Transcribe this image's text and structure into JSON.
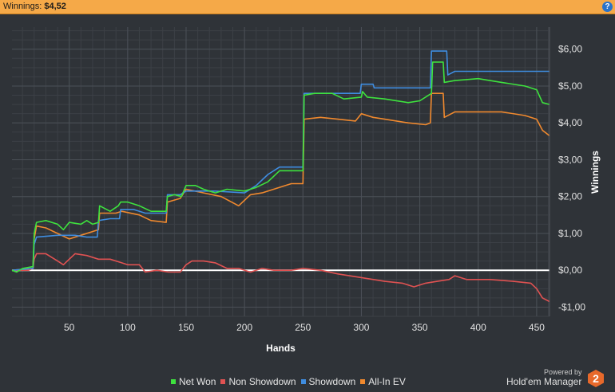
{
  "header": {
    "label": "Winnings:",
    "value": "$4,52",
    "help_icon": "question-icon",
    "help_label": "?"
  },
  "powered": {
    "text": "Powered by",
    "brand": "Hold'em Manager",
    "logo_label": "2"
  },
  "chart_data": {
    "type": "line",
    "xlabel": "Hands",
    "ylabel": "Winnings",
    "xlim": [
      1,
      461
    ],
    "ylim": [
      -1.25,
      6.6
    ],
    "x_ticks": [
      50,
      100,
      150,
      200,
      250,
      300,
      350,
      400,
      450
    ],
    "y_ticks": [
      -1,
      0,
      1,
      2,
      3,
      4,
      5,
      6
    ],
    "y_tick_labels": [
      "-$1,00",
      "$0,00",
      "$1,00",
      "$2,00",
      "$3,00",
      "$4,00",
      "$5,00",
      "$6,00"
    ],
    "grid": true,
    "legend_position": "bottom",
    "zero_line": {
      "y": 0,
      "color": "#ffffff"
    },
    "series": [
      {
        "name": "Net Won",
        "color": "#3ee23e",
        "points": [
          [
            1,
            0
          ],
          [
            5,
            -0.05
          ],
          [
            10,
            0.05
          ],
          [
            19,
            0.1
          ],
          [
            20,
            1.0
          ],
          [
            22,
            1.3
          ],
          [
            30,
            1.35
          ],
          [
            40,
            1.25
          ],
          [
            45,
            1.1
          ],
          [
            50,
            1.3
          ],
          [
            60,
            1.25
          ],
          [
            65,
            1.35
          ],
          [
            70,
            1.25
          ],
          [
            75,
            1.3
          ],
          [
            76,
            1.75
          ],
          [
            85,
            1.6
          ],
          [
            92,
            1.75
          ],
          [
            94,
            1.85
          ],
          [
            100,
            1.85
          ],
          [
            110,
            1.75
          ],
          [
            120,
            1.6
          ],
          [
            133,
            1.6
          ],
          [
            134,
            2.0
          ],
          [
            140,
            2.05
          ],
          [
            146,
            2.0
          ],
          [
            150,
            2.3
          ],
          [
            158,
            2.3
          ],
          [
            165,
            2.2
          ],
          [
            175,
            2.1
          ],
          [
            185,
            2.2
          ],
          [
            200,
            2.15
          ],
          [
            210,
            2.25
          ],
          [
            220,
            2.4
          ],
          [
            230,
            2.7
          ],
          [
            250,
            2.7
          ],
          [
            251,
            4.75
          ],
          [
            260,
            4.8
          ],
          [
            275,
            4.8
          ],
          [
            285,
            4.65
          ],
          [
            300,
            4.7
          ],
          [
            301,
            4.85
          ],
          [
            305,
            4.7
          ],
          [
            320,
            4.65
          ],
          [
            340,
            4.55
          ],
          [
            350,
            4.6
          ],
          [
            360,
            4.8
          ],
          [
            361,
            5.65
          ],
          [
            370,
            5.65
          ],
          [
            371,
            5.1
          ],
          [
            380,
            5.15
          ],
          [
            400,
            5.2
          ],
          [
            420,
            5.1
          ],
          [
            440,
            5.0
          ],
          [
            450,
            4.9
          ],
          [
            455,
            4.55
          ],
          [
            461,
            4.5
          ]
        ]
      },
      {
        "name": "Non Showdown",
        "color": "#e05252",
        "points": [
          [
            1,
            0
          ],
          [
            15,
            0
          ],
          [
            19,
            0.05
          ],
          [
            20,
            0.3
          ],
          [
            22,
            0.45
          ],
          [
            30,
            0.45
          ],
          [
            40,
            0.25
          ],
          [
            45,
            0.15
          ],
          [
            50,
            0.3
          ],
          [
            55,
            0.45
          ],
          [
            65,
            0.4
          ],
          [
            75,
            0.3
          ],
          [
            85,
            0.3
          ],
          [
            95,
            0.2
          ],
          [
            100,
            0.15
          ],
          [
            110,
            0.15
          ],
          [
            115,
            -0.05
          ],
          [
            125,
            0.0
          ],
          [
            135,
            -0.05
          ],
          [
            145,
            -0.05
          ],
          [
            150,
            0.15
          ],
          [
            155,
            0.25
          ],
          [
            165,
            0.25
          ],
          [
            175,
            0.2
          ],
          [
            185,
            0.05
          ],
          [
            195,
            0.05
          ],
          [
            205,
            -0.05
          ],
          [
            215,
            0.05
          ],
          [
            225,
            0.0
          ],
          [
            240,
            0.0
          ],
          [
            250,
            0.05
          ],
          [
            265,
            0.0
          ],
          [
            280,
            -0.1
          ],
          [
            300,
            -0.2
          ],
          [
            320,
            -0.3
          ],
          [
            335,
            -0.35
          ],
          [
            345,
            -0.45
          ],
          [
            355,
            -0.35
          ],
          [
            365,
            -0.3
          ],
          [
            375,
            -0.25
          ],
          [
            380,
            -0.15
          ],
          [
            390,
            -0.25
          ],
          [
            410,
            -0.25
          ],
          [
            430,
            -0.3
          ],
          [
            445,
            -0.35
          ],
          [
            450,
            -0.5
          ],
          [
            455,
            -0.75
          ],
          [
            461,
            -0.85
          ]
        ]
      },
      {
        "name": "Showdown",
        "color": "#3f8de0",
        "points": [
          [
            1,
            0
          ],
          [
            19,
            0.05
          ],
          [
            20,
            0.7
          ],
          [
            22,
            0.9
          ],
          [
            40,
            0.95
          ],
          [
            55,
            0.95
          ],
          [
            65,
            0.9
          ],
          [
            74,
            0.9
          ],
          [
            75,
            1.35
          ],
          [
            85,
            1.4
          ],
          [
            93,
            1.4
          ],
          [
            94,
            1.65
          ],
          [
            105,
            1.65
          ],
          [
            115,
            1.55
          ],
          [
            125,
            1.55
          ],
          [
            133,
            1.55
          ],
          [
            134,
            2.05
          ],
          [
            145,
            2.05
          ],
          [
            150,
            2.15
          ],
          [
            160,
            2.15
          ],
          [
            175,
            2.15
          ],
          [
            200,
            2.1
          ],
          [
            210,
            2.3
          ],
          [
            220,
            2.6
          ],
          [
            230,
            2.8
          ],
          [
            250,
            2.8
          ],
          [
            251,
            4.8
          ],
          [
            275,
            4.8
          ],
          [
            290,
            4.8
          ],
          [
            299,
            4.8
          ],
          [
            300,
            5.05
          ],
          [
            310,
            5.05
          ],
          [
            311,
            4.95
          ],
          [
            355,
            4.95
          ],
          [
            359,
            4.95
          ],
          [
            360,
            5.95
          ],
          [
            373,
            5.95
          ],
          [
            374,
            5.3
          ],
          [
            380,
            5.4
          ],
          [
            461,
            5.4
          ]
        ]
      },
      {
        "name": "All-In EV",
        "color": "#f0892e",
        "points": [
          [
            1,
            0
          ],
          [
            19,
            0.05
          ],
          [
            20,
            0.85
          ],
          [
            22,
            1.2
          ],
          [
            30,
            1.15
          ],
          [
            40,
            1.0
          ],
          [
            50,
            0.85
          ],
          [
            60,
            0.95
          ],
          [
            75,
            1.1
          ],
          [
            76,
            1.55
          ],
          [
            90,
            1.55
          ],
          [
            95,
            1.6
          ],
          [
            110,
            1.5
          ],
          [
            120,
            1.35
          ],
          [
            133,
            1.3
          ],
          [
            134,
            1.85
          ],
          [
            145,
            1.95
          ],
          [
            150,
            2.2
          ],
          [
            165,
            2.1
          ],
          [
            180,
            2.0
          ],
          [
            195,
            1.75
          ],
          [
            205,
            2.05
          ],
          [
            215,
            2.1
          ],
          [
            225,
            2.2
          ],
          [
            240,
            2.35
          ],
          [
            250,
            2.35
          ],
          [
            251,
            4.1
          ],
          [
            265,
            4.15
          ],
          [
            280,
            4.1
          ],
          [
            295,
            4.05
          ],
          [
            300,
            4.25
          ],
          [
            310,
            4.15
          ],
          [
            320,
            4.1
          ],
          [
            340,
            4.0
          ],
          [
            355,
            3.95
          ],
          [
            359,
            4.0
          ],
          [
            360,
            4.8
          ],
          [
            370,
            4.8
          ],
          [
            371,
            4.15
          ],
          [
            380,
            4.3
          ],
          [
            400,
            4.3
          ],
          [
            420,
            4.3
          ],
          [
            440,
            4.2
          ],
          [
            450,
            4.1
          ],
          [
            455,
            3.8
          ],
          [
            461,
            3.65
          ]
        ]
      }
    ]
  }
}
